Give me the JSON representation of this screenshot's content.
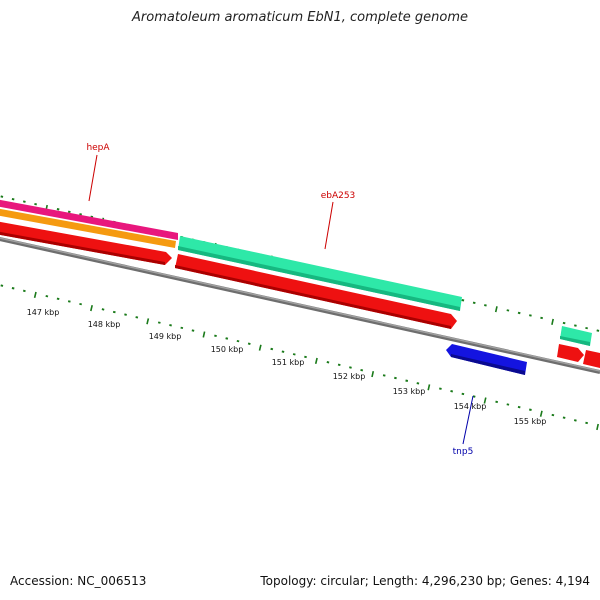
{
  "title": "Aromatoleum aromaticum EbN1, complete genome",
  "footer": {
    "accession": "Accession: NC_006513",
    "summary": "Topology: circular; Length: 4,296,230 bp; Genes: 4,194"
  },
  "scale": {
    "unit": "kbp",
    "labels": [
      "147 kbp",
      "148 kbp",
      "149 kbp",
      "150 kbp",
      "151 kbp",
      "152 kbp",
      "153 kbp",
      "154 kbp",
      "155 kbp"
    ]
  },
  "gene_labels": [
    {
      "text": "hepA",
      "color": "#cc0000"
    },
    {
      "text": "ebA253",
      "color": "#cc0000"
    },
    {
      "text": "tnp5",
      "color": "#0000aa"
    }
  ],
  "colors": {
    "tick": "#1a7a1a",
    "backbone": "#888888",
    "cds_red": "#ee1111",
    "magenta": "#e8177d",
    "orange": "#f58a0a",
    "teal": "#2ee8a8",
    "blue": "#1414e0"
  }
}
